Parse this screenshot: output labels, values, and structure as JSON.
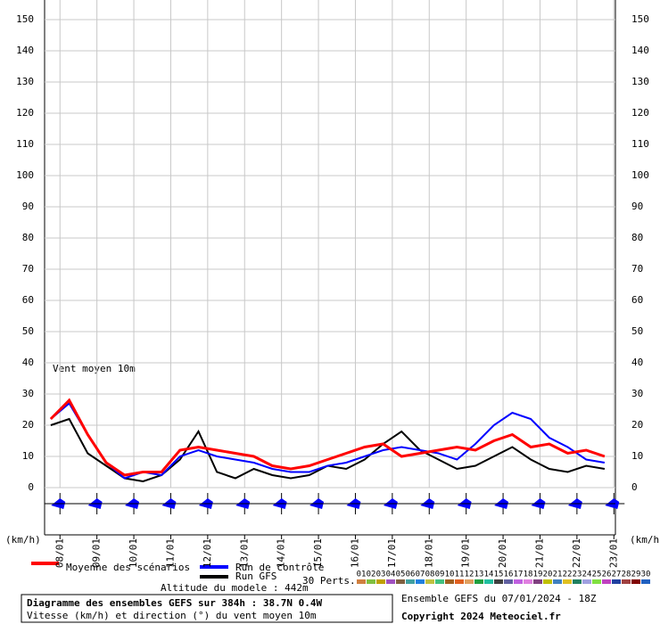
{
  "chart_data": {
    "type": "line",
    "annotation": "Vent moyen 10m",
    "y_unit_left": "(km/h)",
    "y_unit_right": "(km/h)",
    "xlim": [
      -4,
      367
    ],
    "ylim": [
      0,
      150
    ],
    "yticks": [
      0,
      10,
      20,
      30,
      40,
      50,
      60,
      70,
      80,
      90,
      100,
      110,
      120,
      130,
      140,
      150
    ],
    "xticks": [
      {
        "value": 6,
        "label": "08/01"
      },
      {
        "value": 30,
        "label": "09/01"
      },
      {
        "value": 54,
        "label": "10/01"
      },
      {
        "value": 78,
        "label": "11/01"
      },
      {
        "value": 102,
        "label": "12/01"
      },
      {
        "value": 126,
        "label": "13/01"
      },
      {
        "value": 150,
        "label": "14/01"
      },
      {
        "value": 174,
        "label": "15/01"
      },
      {
        "value": 198,
        "label": "16/01"
      },
      {
        "value": 222,
        "label": "17/01"
      },
      {
        "value": 246,
        "label": "18/01"
      },
      {
        "value": 270,
        "label": "19/01"
      },
      {
        "value": 294,
        "label": "20/01"
      },
      {
        "value": 318,
        "label": "21/01"
      },
      {
        "value": 342,
        "label": "22/01"
      },
      {
        "value": 366,
        "label": "23/01"
      }
    ],
    "grid": true,
    "x": [
      0,
      12,
      24,
      36,
      48,
      60,
      72,
      84,
      96,
      108,
      120,
      132,
      144,
      156,
      168,
      180,
      192,
      204,
      216,
      228,
      240,
      252,
      264,
      276,
      288,
      300,
      312,
      324,
      336,
      348,
      360
    ],
    "series": [
      {
        "name": "Run GFS",
        "color": "#000000",
        "width": 2,
        "values": [
          20,
          22,
          11,
          7,
          3,
          2,
          4,
          9,
          18,
          5,
          3,
          6,
          4,
          3,
          4,
          7,
          6,
          9,
          14,
          18,
          12,
          9,
          6,
          7,
          10,
          13,
          9,
          6,
          5,
          7,
          6
        ]
      },
      {
        "name": "Run de contrôle",
        "color": "#0000ff",
        "width": 2,
        "values": [
          22,
          27,
          17,
          8,
          3,
          5,
          4,
          10,
          12,
          10,
          9,
          8,
          6,
          5,
          5,
          7,
          8,
          10,
          12,
          13,
          12,
          11,
          9,
          14,
          20,
          24,
          22,
          16,
          13,
          9,
          8
        ]
      },
      {
        "name": "Moyenne des scénarios",
        "color": "#ff0000",
        "width": 3,
        "values": [
          22,
          28,
          17,
          8,
          4,
          5,
          5,
          12,
          13,
          12,
          11,
          10,
          7,
          6,
          7,
          9,
          11,
          13,
          14,
          10,
          11,
          12,
          13,
          12,
          15,
          17,
          13,
          14,
          11,
          12,
          10
        ]
      }
    ],
    "perturbations": {
      "label": "30 Perts.",
      "names": [
        "01",
        "02",
        "03",
        "04",
        "05",
        "06",
        "07",
        "08",
        "09",
        "10",
        "11",
        "12",
        "13",
        "14",
        "15",
        "16",
        "17",
        "18",
        "19",
        "20",
        "21",
        "22",
        "23",
        "24",
        "25",
        "26",
        "27",
        "28",
        "29",
        "30"
      ],
      "colors": [
        "#d08040",
        "#80c040",
        "#c0a000",
        "#a050c0",
        "#806040",
        "#40a0a0",
        "#2080e0",
        "#c0c040",
        "#40c080",
        "#a06020",
        "#e06020",
        "#e0a060",
        "#20a040",
        "#20c0a0",
        "#404040",
        "#6060a0",
        "#c060e0",
        "#e080e0",
        "#804080",
        "#c0c000",
        "#4080c0",
        "#e0c020",
        "#208060",
        "#a0a0e0",
        "#80e040",
        "#c040c0",
        "#2040a0",
        "#a04040",
        "#800000",
        "#2060c0"
      ]
    },
    "info": {
      "title": "Diagramme des ensembles GEFS sur 384h : 38.7N 0.4W",
      "subtitle": "Vitesse (km/h) et direction (°) du vent moyen 10m",
      "altitude": "Altitude du modele : 442m",
      "run": "Ensemble GEFS du 07/01/2024 - 18Z",
      "copyright": "Copyright 2024 Meteociel.fr"
    }
  }
}
